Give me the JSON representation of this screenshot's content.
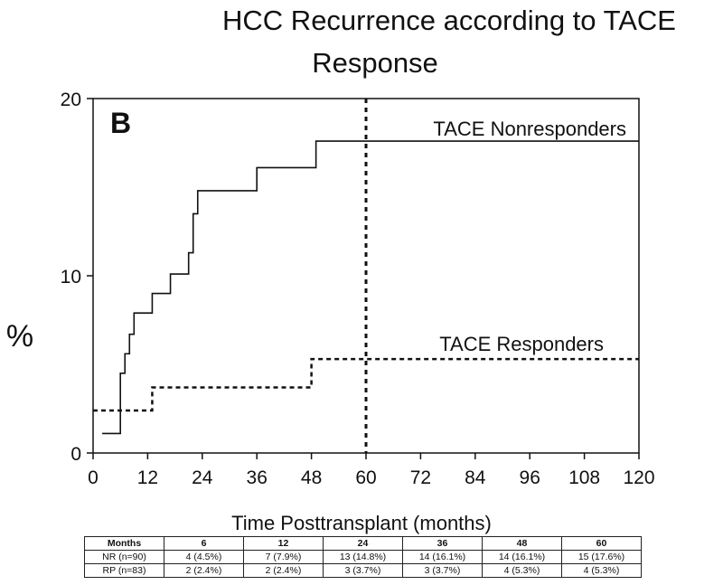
{
  "chart_data": {
    "type": "line",
    "title_lines": [
      "HCC Recurrence according to TACE",
      "Response"
    ],
    "panel_label": "B",
    "xlabel": "Time Posttransplant (months)",
    "ylabel": "%",
    "xlim": [
      0,
      120
    ],
    "ylim": [
      0,
      20
    ],
    "x_ticks": [
      0,
      12,
      24,
      36,
      48,
      60,
      72,
      84,
      96,
      108,
      120
    ],
    "y_ticks": [
      0,
      10,
      20
    ],
    "grid": false,
    "reference_line_x": 60,
    "series": [
      {
        "name": "TACE Nonresponders",
        "line_style": "solid",
        "step": true,
        "x": [
          2,
          6,
          7,
          8,
          9,
          13,
          17,
          21,
          22,
          23,
          36,
          49,
          120
        ],
        "y": [
          1.1,
          4.5,
          5.6,
          6.7,
          7.9,
          9.0,
          10.1,
          11.3,
          13.5,
          14.8,
          16.1,
          17.6,
          17.6
        ]
      },
      {
        "name": "TACE Responders",
        "line_style": "dashed",
        "step": true,
        "x": [
          0,
          13,
          48,
          120
        ],
        "y": [
          2.4,
          3.7,
          5.3,
          5.3
        ]
      }
    ]
  },
  "table": {
    "headers": [
      "Months",
      "6",
      "12",
      "24",
      "36",
      "48",
      "60"
    ],
    "rows": [
      [
        "NR (n=90)",
        "4 (4.5%)",
        "7 (7.9%)",
        "13 (14.8%)",
        "14 (16.1%)",
        "14 (16.1%)",
        "15 (17.6%)"
      ],
      [
        "RP (n=83)",
        "2 (2.4%)",
        "2 (2.4%)",
        "3 (3.7%)",
        "3 (3.7%)",
        "4 (5.3%)",
        "4 (5.3%)"
      ]
    ]
  }
}
